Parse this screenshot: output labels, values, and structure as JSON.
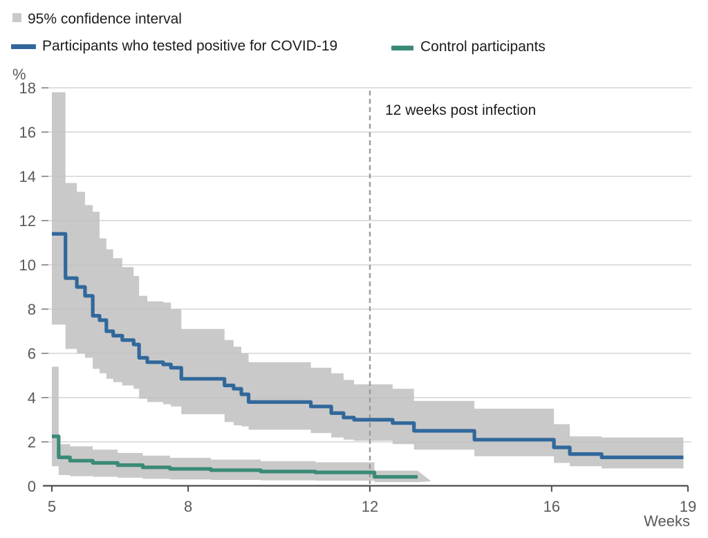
{
  "legend": {
    "ci_label": "95% confidence interval",
    "series1_label": "Participants who tested positive for COVID-19",
    "series2_label": "Control participants"
  },
  "annotation": {
    "text": "12 weeks post infection"
  },
  "axes": {
    "y_unit_label": "%",
    "x_unit_label": "Weeks",
    "y_ticks": [
      0,
      2,
      4,
      6,
      8,
      10,
      12,
      14,
      16,
      18
    ],
    "x_ticks": [
      5,
      8,
      12,
      16,
      19
    ]
  },
  "colors": {
    "positive_line": "#31689b",
    "control_line": "#3a8a77",
    "ci_band": "#c9c9c9",
    "gridline": "#bfbfbf",
    "tick_stub": "#999999",
    "axis": "#4c4c4c",
    "tick_text": "#595959",
    "label_text": "#1c1c1c",
    "reference_line": "#9b9b9b"
  },
  "chart_data": {
    "type": "line",
    "subtype": "step-survival-curve-with-ci",
    "title": "",
    "xlabel": "Weeks",
    "ylabel": "%",
    "xlim": [
      5,
      19
    ],
    "ylim": [
      0,
      18
    ],
    "x_tick_values": [
      5,
      8,
      12,
      16,
      19
    ],
    "y_tick_values": [
      0,
      2,
      4,
      6,
      8,
      10,
      12,
      14,
      16,
      18
    ],
    "grid": true,
    "legend_position": "top-left",
    "reference_line": {
      "x": 12,
      "label": "12 weeks post infection"
    },
    "series": [
      {
        "name": "Participants who tested positive for COVID-19",
        "color": "#31689b",
        "ci_color": "#c9c9c9",
        "x_end": 18.9,
        "steps": [
          {
            "x": 5.0,
            "y": 11.4,
            "lo": 7.3,
            "hi": 17.8
          },
          {
            "x": 5.3,
            "y": 9.4,
            "lo": 6.2,
            "hi": 13.7
          },
          {
            "x": 5.55,
            "y": 9.0,
            "lo": 6.0,
            "hi": 13.3
          },
          {
            "x": 5.73,
            "y": 8.6,
            "lo": 5.8,
            "hi": 12.7
          },
          {
            "x": 5.9,
            "y": 7.7,
            "lo": 5.3,
            "hi": 12.4
          },
          {
            "x": 6.05,
            "y": 7.5,
            "lo": 5.1,
            "hi": 11.2
          },
          {
            "x": 6.2,
            "y": 7.0,
            "lo": 4.85,
            "hi": 10.7
          },
          {
            "x": 6.35,
            "y": 6.8,
            "lo": 4.7,
            "hi": 10.3
          },
          {
            "x": 6.55,
            "y": 6.6,
            "lo": 4.55,
            "hi": 9.9
          },
          {
            "x": 6.8,
            "y": 6.4,
            "lo": 4.4,
            "hi": 9.5
          },
          {
            "x": 6.92,
            "y": 5.8,
            "lo": 3.95,
            "hi": 8.6
          },
          {
            "x": 7.1,
            "y": 5.6,
            "lo": 3.8,
            "hi": 8.35
          },
          {
            "x": 7.45,
            "y": 5.5,
            "lo": 3.7,
            "hi": 8.3
          },
          {
            "x": 7.62,
            "y": 5.35,
            "lo": 3.6,
            "hi": 8.0
          },
          {
            "x": 7.85,
            "y": 4.85,
            "lo": 3.25,
            "hi": 7.1
          },
          {
            "x": 8.8,
            "y": 4.55,
            "lo": 2.9,
            "hi": 6.6
          },
          {
            "x": 9.0,
            "y": 4.4,
            "lo": 2.75,
            "hi": 6.3
          },
          {
            "x": 9.17,
            "y": 4.15,
            "lo": 2.7,
            "hi": 6.0
          },
          {
            "x": 9.33,
            "y": 3.8,
            "lo": 2.55,
            "hi": 5.6
          },
          {
            "x": 10.7,
            "y": 3.6,
            "lo": 2.4,
            "hi": 5.35
          },
          {
            "x": 11.15,
            "y": 3.3,
            "lo": 2.2,
            "hi": 5.1
          },
          {
            "x": 11.42,
            "y": 3.1,
            "lo": 2.1,
            "hi": 4.8
          },
          {
            "x": 11.65,
            "y": 3.0,
            "lo": 2.05,
            "hi": 4.6
          },
          {
            "x": 12.5,
            "y": 2.85,
            "lo": 1.9,
            "hi": 4.4
          },
          {
            "x": 12.97,
            "y": 2.5,
            "lo": 1.65,
            "hi": 3.85
          },
          {
            "x": 14.3,
            "y": 2.1,
            "lo": 1.35,
            "hi": 3.5
          },
          {
            "x": 16.05,
            "y": 1.75,
            "lo": 1.05,
            "hi": 2.8
          },
          {
            "x": 16.4,
            "y": 1.45,
            "lo": 0.9,
            "hi": 2.25
          },
          {
            "x": 17.1,
            "y": 1.3,
            "lo": 0.8,
            "hi": 2.2
          }
        ]
      },
      {
        "name": "Control participants",
        "color": "#3a8a77",
        "ci_color": "#c9c9c9",
        "x_end": 13.05,
        "ci_taper": {
          "x": 13.35,
          "y": 0.22
        },
        "steps": [
          {
            "x": 5.0,
            "y": 2.25,
            "lo": 0.9,
            "hi": 5.4
          },
          {
            "x": 5.15,
            "y": 1.3,
            "lo": 0.5,
            "hi": 1.9
          },
          {
            "x": 5.4,
            "y": 1.15,
            "lo": 0.45,
            "hi": 1.8
          },
          {
            "x": 5.9,
            "y": 1.05,
            "lo": 0.42,
            "hi": 1.65
          },
          {
            "x": 6.45,
            "y": 0.95,
            "lo": 0.38,
            "hi": 1.5
          },
          {
            "x": 7.0,
            "y": 0.85,
            "lo": 0.33,
            "hi": 1.38
          },
          {
            "x": 7.6,
            "y": 0.78,
            "lo": 0.3,
            "hi": 1.28
          },
          {
            "x": 8.5,
            "y": 0.72,
            "lo": 0.28,
            "hi": 1.2
          },
          {
            "x": 9.6,
            "y": 0.66,
            "lo": 0.26,
            "hi": 1.13
          },
          {
            "x": 10.8,
            "y": 0.62,
            "lo": 0.25,
            "hi": 1.08
          },
          {
            "x": 12.1,
            "y": 0.42,
            "lo": 0.18,
            "hi": 0.7
          }
        ]
      }
    ]
  }
}
